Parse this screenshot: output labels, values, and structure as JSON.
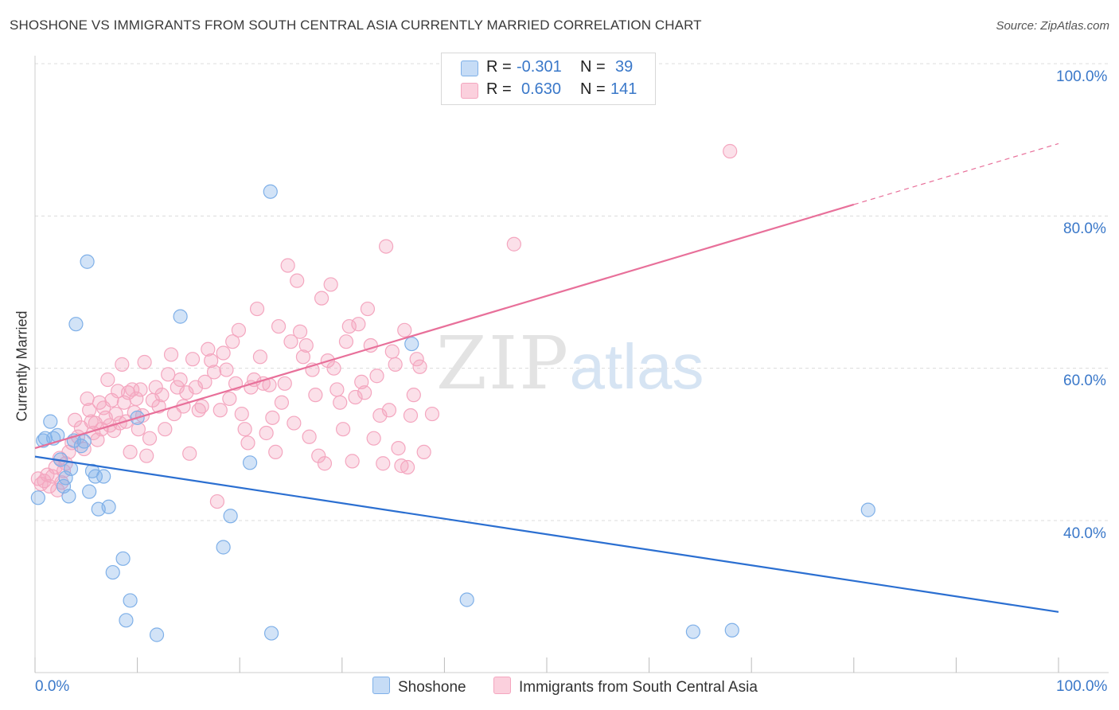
{
  "title": "SHOSHONE VS IMMIGRANTS FROM SOUTH CENTRAL ASIA CURRENTLY MARRIED CORRELATION CHART",
  "source": "Source: ZipAtlas.com",
  "watermark": {
    "zip": "ZIP",
    "atlas": "atlas"
  },
  "legend": {
    "r_label": "R =",
    "n_label": "N =",
    "series": [
      {
        "name": "Shoshone",
        "r": "-0.301",
        "n": "39",
        "color": "#7fb0e8"
      },
      {
        "name": "Immigrants from South Central Asia",
        "r": "0.630",
        "n": "141",
        "color": "#f4a6bf"
      }
    ]
  },
  "chart_data": {
    "type": "scatter",
    "title": "SHOSHONE VS IMMIGRANTS FROM SOUTH CENTRAL ASIA CURRENTLY MARRIED CORRELATION CHART",
    "xlabel": "",
    "ylabel": "Currently Married",
    "xlim": [
      0,
      100
    ],
    "ylim": [
      20,
      104
    ],
    "x_tick_labels": [
      "0.0%",
      "100.0%"
    ],
    "y_ticks": [
      40,
      60,
      80,
      100
    ],
    "y_tick_labels": [
      "40.0%",
      "60.0%",
      "80.0%",
      "100.0%"
    ],
    "grid": true,
    "series": [
      {
        "name": "Shoshone",
        "color": "#7fb0e8",
        "line_color": "#2b6fd1",
        "trend": {
          "x0": 0,
          "y0": 48.4,
          "x1": 100,
          "y1": 28.0
        },
        "points": [
          [
            0.3,
            43.0
          ],
          [
            0.8,
            50.5
          ],
          [
            1.0,
            50.8
          ],
          [
            1.5,
            53.0
          ],
          [
            1.8,
            50.8
          ],
          [
            2.2,
            51.2
          ],
          [
            2.5,
            48.0
          ],
          [
            2.8,
            44.5
          ],
          [
            3.0,
            45.6
          ],
          [
            3.3,
            43.2
          ],
          [
            3.5,
            46.8
          ],
          [
            3.8,
            50.5
          ],
          [
            4.0,
            65.8
          ],
          [
            4.5,
            49.8
          ],
          [
            4.8,
            50.4
          ],
          [
            5.1,
            74.0
          ],
          [
            5.3,
            43.8
          ],
          [
            5.6,
            46.5
          ],
          [
            5.9,
            45.8
          ],
          [
            6.2,
            41.5
          ],
          [
            6.7,
            45.8
          ],
          [
            7.2,
            41.8
          ],
          [
            7.6,
            33.2
          ],
          [
            8.6,
            35.0
          ],
          [
            8.9,
            26.9
          ],
          [
            9.3,
            29.5
          ],
          [
            10.0,
            53.5
          ],
          [
            11.9,
            25.0
          ],
          [
            14.2,
            66.8
          ],
          [
            18.4,
            36.5
          ],
          [
            19.1,
            40.6
          ],
          [
            21.0,
            47.6
          ],
          [
            23.0,
            83.2
          ],
          [
            23.1,
            25.2
          ],
          [
            36.8,
            63.2
          ],
          [
            42.2,
            29.6
          ],
          [
            64.3,
            25.4
          ],
          [
            68.1,
            25.6
          ],
          [
            81.4,
            41.4
          ]
        ]
      },
      {
        "name": "Immigrants from South Central Asia",
        "color": "#f4a6bf",
        "line_color": "#e8709a",
        "trend": {
          "x0": 0,
          "y0": 49.5,
          "x1": 80,
          "y1": 81.5
        },
        "trend_dashed": {
          "x0": 80,
          "y0": 81.5,
          "x1": 100,
          "y1": 89.5
        },
        "points": [
          [
            0.3,
            45.5
          ],
          [
            0.6,
            44.8
          ],
          [
            0.9,
            45.2
          ],
          [
            1.2,
            46.0
          ],
          [
            1.4,
            44.5
          ],
          [
            1.7,
            45.8
          ],
          [
            2.0,
            47.0
          ],
          [
            2.2,
            44.0
          ],
          [
            2.4,
            48.2
          ],
          [
            2.6,
            45.0
          ],
          [
            2.8,
            46.5
          ],
          [
            3.0,
            47.5
          ],
          [
            3.3,
            49.0
          ],
          [
            3.6,
            50.2
          ],
          [
            3.9,
            53.2
          ],
          [
            4.2,
            51.0
          ],
          [
            4.5,
            52.2
          ],
          [
            4.8,
            49.4
          ],
          [
            5.1,
            56.0
          ],
          [
            5.3,
            54.5
          ],
          [
            5.5,
            53.0
          ],
          [
            5.7,
            51.5
          ],
          [
            5.9,
            52.8
          ],
          [
            6.1,
            50.6
          ],
          [
            6.3,
            55.5
          ],
          [
            6.5,
            52.0
          ],
          [
            6.7,
            54.8
          ],
          [
            6.9,
            53.5
          ],
          [
            7.1,
            58.5
          ],
          [
            7.3,
            52.5
          ],
          [
            7.5,
            55.8
          ],
          [
            7.7,
            51.8
          ],
          [
            7.9,
            54.0
          ],
          [
            8.1,
            57.0
          ],
          [
            8.3,
            52.8
          ],
          [
            8.5,
            60.5
          ],
          [
            8.7,
            55.5
          ],
          [
            8.9,
            53.0
          ],
          [
            9.1,
            56.8
          ],
          [
            9.3,
            49.0
          ],
          [
            9.5,
            57.2
          ],
          [
            9.7,
            54.2
          ],
          [
            9.9,
            56.0
          ],
          [
            10.1,
            52.0
          ],
          [
            10.3,
            57.2
          ],
          [
            10.5,
            53.8
          ],
          [
            10.7,
            60.8
          ],
          [
            10.9,
            48.5
          ],
          [
            11.2,
            50.8
          ],
          [
            11.5,
            55.8
          ],
          [
            11.8,
            57.5
          ],
          [
            12.1,
            55.0
          ],
          [
            12.4,
            56.5
          ],
          [
            12.7,
            52.0
          ],
          [
            13.0,
            59.2
          ],
          [
            13.3,
            61.8
          ],
          [
            13.6,
            54.0
          ],
          [
            13.9,
            57.5
          ],
          [
            14.2,
            58.5
          ],
          [
            14.5,
            55.0
          ],
          [
            14.8,
            56.8
          ],
          [
            15.1,
            48.8
          ],
          [
            15.4,
            61.2
          ],
          [
            15.7,
            57.5
          ],
          [
            16.0,
            54.5
          ],
          [
            16.3,
            55.0
          ],
          [
            16.6,
            58.2
          ],
          [
            16.9,
            62.5
          ],
          [
            17.2,
            61.0
          ],
          [
            17.5,
            59.5
          ],
          [
            17.8,
            42.5
          ],
          [
            18.1,
            54.5
          ],
          [
            18.4,
            62.0
          ],
          [
            18.7,
            59.8
          ],
          [
            19.0,
            56.0
          ],
          [
            19.3,
            63.5
          ],
          [
            19.6,
            58.0
          ],
          [
            19.9,
            65.0
          ],
          [
            20.2,
            54.0
          ],
          [
            20.5,
            52.0
          ],
          [
            20.8,
            50.2
          ],
          [
            21.1,
            57.5
          ],
          [
            21.4,
            58.5
          ],
          [
            21.7,
            67.8
          ],
          [
            22.0,
            61.5
          ],
          [
            22.3,
            58.0
          ],
          [
            22.6,
            51.5
          ],
          [
            22.9,
            57.8
          ],
          [
            23.2,
            53.5
          ],
          [
            23.5,
            49.0
          ],
          [
            23.8,
            65.5
          ],
          [
            24.1,
            55.5
          ],
          [
            24.4,
            58.0
          ],
          [
            24.7,
            73.5
          ],
          [
            25.0,
            63.5
          ],
          [
            25.3,
            52.8
          ],
          [
            25.6,
            71.5
          ],
          [
            25.9,
            64.8
          ],
          [
            26.2,
            61.5
          ],
          [
            26.5,
            63.0
          ],
          [
            26.8,
            51.0
          ],
          [
            27.1,
            59.8
          ],
          [
            27.4,
            56.5
          ],
          [
            27.7,
            48.5
          ],
          [
            28.0,
            69.2
          ],
          [
            28.3,
            47.5
          ],
          [
            28.6,
            61.0
          ],
          [
            28.9,
            71.0
          ],
          [
            29.2,
            60.0
          ],
          [
            29.5,
            57.2
          ],
          [
            29.8,
            55.5
          ],
          [
            30.1,
            52.0
          ],
          [
            30.4,
            63.5
          ],
          [
            30.7,
            65.5
          ],
          [
            31.0,
            47.8
          ],
          [
            31.3,
            56.2
          ],
          [
            31.6,
            65.8
          ],
          [
            31.9,
            58.2
          ],
          [
            32.2,
            56.8
          ],
          [
            32.5,
            67.8
          ],
          [
            32.8,
            63.0
          ],
          [
            33.1,
            50.8
          ],
          [
            33.4,
            59.0
          ],
          [
            33.7,
            53.8
          ],
          [
            34.0,
            47.5
          ],
          [
            34.3,
            76.0
          ],
          [
            34.6,
            54.5
          ],
          [
            34.9,
            62.2
          ],
          [
            35.2,
            60.5
          ],
          [
            35.5,
            49.5
          ],
          [
            35.8,
            47.2
          ],
          [
            36.1,
            65.0
          ],
          [
            36.4,
            47.0
          ],
          [
            36.7,
            53.8
          ],
          [
            37.0,
            56.5
          ],
          [
            37.3,
            61.2
          ],
          [
            37.6,
            60.2
          ],
          [
            38.0,
            49.0
          ],
          [
            46.8,
            76.3
          ],
          [
            67.9,
            88.5
          ],
          [
            38.8,
            54.0
          ]
        ]
      }
    ]
  }
}
